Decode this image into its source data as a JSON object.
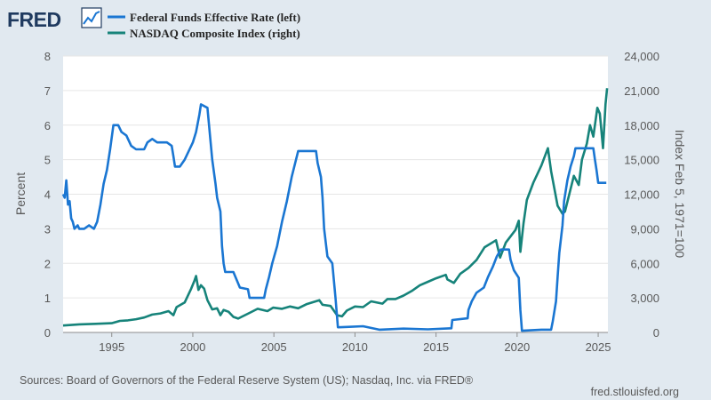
{
  "logo": {
    "text": "FRED",
    "icon": "line-chart-icon"
  },
  "colors": {
    "background": "#e1e9f0",
    "plot": "#ffffff",
    "fedfunds": "#1a76d2",
    "nasdaq": "#16837a",
    "text": "#595959"
  },
  "chart_data": {
    "type": "line",
    "x_range": [
      1992.0,
      2025.6
    ],
    "x_ticks": [
      1995,
      2000,
      2005,
      2010,
      2015,
      2020,
      2025
    ],
    "y_left": {
      "label": "Percent",
      "range": [
        0,
        8
      ],
      "ticks": [
        "0",
        "1",
        "2",
        "3",
        "4",
        "5",
        "6",
        "7",
        "8"
      ]
    },
    "y_right": {
      "label": "Index Feb 5, 1971=100",
      "range": [
        0,
        24000
      ],
      "ticks": [
        "0",
        "3,000",
        "6,000",
        "9,000",
        "12,000",
        "15,000",
        "18,000",
        "21,000",
        "24,000"
      ]
    },
    "grid": "horizontal",
    "legend_position": "top-left",
    "series": [
      {
        "name": "Federal Funds Effective Rate (left)",
        "axis": "left",
        "points": [
          [
            1992.0,
            4.0
          ],
          [
            1992.1,
            3.9
          ],
          [
            1992.2,
            4.4
          ],
          [
            1992.3,
            3.7
          ],
          [
            1992.4,
            3.8
          ],
          [
            1992.5,
            3.3
          ],
          [
            1992.6,
            3.2
          ],
          [
            1992.7,
            3.0
          ],
          [
            1992.9,
            3.1
          ],
          [
            1993.0,
            3.0
          ],
          [
            1993.3,
            3.0
          ],
          [
            1993.6,
            3.1
          ],
          [
            1993.9,
            3.0
          ],
          [
            1994.1,
            3.2
          ],
          [
            1994.3,
            3.7
          ],
          [
            1994.5,
            4.3
          ],
          [
            1994.7,
            4.7
          ],
          [
            1994.9,
            5.3
          ],
          [
            1995.1,
            6.0
          ],
          [
            1995.4,
            6.0
          ],
          [
            1995.6,
            5.8
          ],
          [
            1995.9,
            5.7
          ],
          [
            1996.2,
            5.4
          ],
          [
            1996.5,
            5.3
          ],
          [
            1996.8,
            5.3
          ],
          [
            1997.0,
            5.3
          ],
          [
            1997.2,
            5.5
          ],
          [
            1997.5,
            5.6
          ],
          [
            1997.8,
            5.5
          ],
          [
            1998.0,
            5.5
          ],
          [
            1998.4,
            5.5
          ],
          [
            1998.7,
            5.4
          ],
          [
            1998.8,
            5.1
          ],
          [
            1998.9,
            4.8
          ],
          [
            1999.2,
            4.8
          ],
          [
            1999.5,
            5.0
          ],
          [
            1999.8,
            5.3
          ],
          [
            2000.0,
            5.5
          ],
          [
            2000.2,
            5.8
          ],
          [
            2000.4,
            6.3
          ],
          [
            2000.5,
            6.6
          ],
          [
            2000.9,
            6.5
          ],
          [
            2001.0,
            6.0
          ],
          [
            2001.1,
            5.5
          ],
          [
            2001.2,
            5.0
          ],
          [
            2001.4,
            4.3
          ],
          [
            2001.5,
            3.9
          ],
          [
            2001.7,
            3.5
          ],
          [
            2001.8,
            2.5
          ],
          [
            2001.9,
            2.0
          ],
          [
            2002.0,
            1.75
          ],
          [
            2002.5,
            1.75
          ],
          [
            2002.9,
            1.3
          ],
          [
            2003.4,
            1.25
          ],
          [
            2003.5,
            1.0
          ],
          [
            2004.4,
            1.0
          ],
          [
            2004.5,
            1.25
          ],
          [
            2004.7,
            1.6
          ],
          [
            2004.9,
            2.0
          ],
          [
            2005.2,
            2.5
          ],
          [
            2005.5,
            3.2
          ],
          [
            2005.8,
            3.8
          ],
          [
            2006.1,
            4.5
          ],
          [
            2006.5,
            5.25
          ],
          [
            2007.6,
            5.25
          ],
          [
            2007.7,
            4.9
          ],
          [
            2007.9,
            4.5
          ],
          [
            2008.0,
            3.9
          ],
          [
            2008.1,
            3.0
          ],
          [
            2008.3,
            2.2
          ],
          [
            2008.6,
            2.0
          ],
          [
            2008.8,
            1.0
          ],
          [
            2008.95,
            0.15
          ],
          [
            2009.5,
            0.16
          ],
          [
            2010.5,
            0.18
          ],
          [
            2011.5,
            0.08
          ],
          [
            2013.0,
            0.11
          ],
          [
            2014.5,
            0.09
          ],
          [
            2015.95,
            0.12
          ],
          [
            2016.0,
            0.36
          ],
          [
            2016.95,
            0.41
          ],
          [
            2017.0,
            0.65
          ],
          [
            2017.2,
            0.9
          ],
          [
            2017.5,
            1.15
          ],
          [
            2017.95,
            1.3
          ],
          [
            2018.2,
            1.6
          ],
          [
            2018.5,
            1.9
          ],
          [
            2018.75,
            2.2
          ],
          [
            2019.0,
            2.4
          ],
          [
            2019.5,
            2.4
          ],
          [
            2019.6,
            2.1
          ],
          [
            2019.8,
            1.8
          ],
          [
            2020.1,
            1.58
          ],
          [
            2020.2,
            0.65
          ],
          [
            2020.3,
            0.05
          ],
          [
            2021.5,
            0.08
          ],
          [
            2022.1,
            0.08
          ],
          [
            2022.2,
            0.33
          ],
          [
            2022.4,
            0.9
          ],
          [
            2022.5,
            1.6
          ],
          [
            2022.6,
            2.3
          ],
          [
            2022.8,
            3.1
          ],
          [
            2022.9,
            3.8
          ],
          [
            2023.1,
            4.4
          ],
          [
            2023.3,
            4.8
          ],
          [
            2023.5,
            5.1
          ],
          [
            2023.6,
            5.33
          ],
          [
            2024.7,
            5.33
          ],
          [
            2024.8,
            5.0
          ],
          [
            2024.9,
            4.7
          ],
          [
            2025.0,
            4.33
          ],
          [
            2025.5,
            4.33
          ]
        ]
      },
      {
        "name": "NASDAQ Composite Index (right)",
        "axis": "right",
        "points": [
          [
            1992.0,
            600
          ],
          [
            1993.0,
            700
          ],
          [
            1994.0,
            750
          ],
          [
            1995.0,
            800
          ],
          [
            1995.5,
            1000
          ],
          [
            1996.0,
            1050
          ],
          [
            1996.5,
            1150
          ],
          [
            1997.0,
            1300
          ],
          [
            1997.5,
            1550
          ],
          [
            1998.0,
            1650
          ],
          [
            1998.5,
            1850
          ],
          [
            1998.8,
            1500
          ],
          [
            1999.0,
            2200
          ],
          [
            1999.5,
            2600
          ],
          [
            1999.9,
            3800
          ],
          [
            2000.1,
            4500
          ],
          [
            2000.2,
            4900
          ],
          [
            2000.35,
            3700
          ],
          [
            2000.5,
            4100
          ],
          [
            2000.7,
            3800
          ],
          [
            2000.9,
            2800
          ],
          [
            2001.2,
            2000
          ],
          [
            2001.5,
            2100
          ],
          [
            2001.7,
            1500
          ],
          [
            2001.9,
            1950
          ],
          [
            2002.2,
            1800
          ],
          [
            2002.5,
            1350
          ],
          [
            2002.8,
            1200
          ],
          [
            2003.0,
            1350
          ],
          [
            2003.5,
            1700
          ],
          [
            2004.0,
            2050
          ],
          [
            2004.6,
            1850
          ],
          [
            2004.95,
            2150
          ],
          [
            2005.5,
            2050
          ],
          [
            2006.0,
            2250
          ],
          [
            2006.5,
            2100
          ],
          [
            2007.0,
            2450
          ],
          [
            2007.8,
            2800
          ],
          [
            2008.0,
            2400
          ],
          [
            2008.5,
            2300
          ],
          [
            2008.9,
            1500
          ],
          [
            2009.2,
            1400
          ],
          [
            2009.5,
            1900
          ],
          [
            2010.0,
            2250
          ],
          [
            2010.5,
            2200
          ],
          [
            2011.0,
            2700
          ],
          [
            2011.7,
            2500
          ],
          [
            2012.0,
            2900
          ],
          [
            2012.5,
            2900
          ],
          [
            2013.0,
            3200
          ],
          [
            2013.5,
            3600
          ],
          [
            2014.0,
            4100
          ],
          [
            2014.5,
            4400
          ],
          [
            2015.0,
            4700
          ],
          [
            2015.6,
            5000
          ],
          [
            2015.7,
            4600
          ],
          [
            2016.1,
            4300
          ],
          [
            2016.5,
            5100
          ],
          [
            2017.0,
            5600
          ],
          [
            2017.5,
            6300
          ],
          [
            2018.0,
            7400
          ],
          [
            2018.7,
            8000
          ],
          [
            2018.95,
            6500
          ],
          [
            2019.3,
            7800
          ],
          [
            2019.9,
            8900
          ],
          [
            2020.1,
            9700
          ],
          [
            2020.2,
            7000
          ],
          [
            2020.4,
            9500
          ],
          [
            2020.6,
            11500
          ],
          [
            2021.0,
            13000
          ],
          [
            2021.5,
            14500
          ],
          [
            2021.9,
            16000
          ],
          [
            2022.1,
            14000
          ],
          [
            2022.5,
            11000
          ],
          [
            2022.8,
            10300
          ],
          [
            2022.95,
            10500
          ],
          [
            2023.5,
            13600
          ],
          [
            2023.8,
            12800
          ],
          [
            2024.0,
            15000
          ],
          [
            2024.3,
            16400
          ],
          [
            2024.5,
            18000
          ],
          [
            2024.7,
            17000
          ],
          [
            2024.95,
            19500
          ],
          [
            2025.1,
            19000
          ],
          [
            2025.3,
            16000
          ],
          [
            2025.45,
            19800
          ],
          [
            2025.55,
            21200
          ]
        ]
      }
    ]
  },
  "footer": {
    "source": "Sources: Board of Governors of the Federal Reserve System (US); Nasdaq, Inc. via FRED®",
    "url": "fred.stlouisfed.org"
  }
}
